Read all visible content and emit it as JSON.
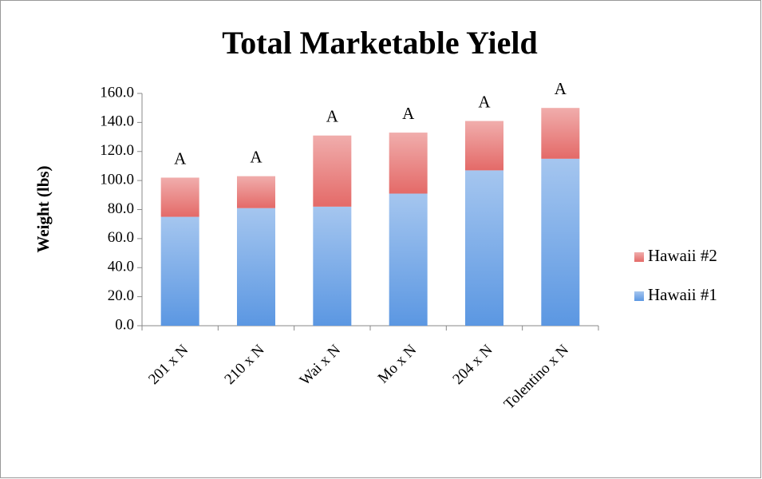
{
  "chart_data": {
    "type": "stacked_bar",
    "title": "Total Marketable Yield",
    "y_label": "Weight (lbs)",
    "categories": [
      "201 x N",
      "210 x N",
      "Wai x N",
      "Mo x N",
      "204 x N",
      "Tolentino x N"
    ],
    "series": [
      {
        "name": "Hawaii #1",
        "color": "#5b97e2",
        "values": [
          75,
          81,
          82,
          91,
          107,
          115
        ]
      },
      {
        "name": "Hawaii #2",
        "color": "#e46a68",
        "values": [
          27,
          22,
          49,
          42,
          34,
          35
        ]
      }
    ],
    "annotations": [
      "A",
      "A",
      "A",
      "A",
      "A",
      "A"
    ],
    "ylim": [
      0,
      160
    ],
    "yticks": [
      {
        "value": 0,
        "label": "0.0"
      },
      {
        "value": 20,
        "label": "20.0"
      },
      {
        "value": 40,
        "label": "40.0"
      },
      {
        "value": 60,
        "label": "60.0"
      },
      {
        "value": 80,
        "label": "80.0"
      },
      {
        "value": 100,
        "label": "100.0"
      },
      {
        "value": 120,
        "label": "120.0"
      },
      {
        "value": 140,
        "label": "140.0"
      },
      {
        "value": 160,
        "label": "160.0"
      }
    ],
    "legend": "right"
  }
}
